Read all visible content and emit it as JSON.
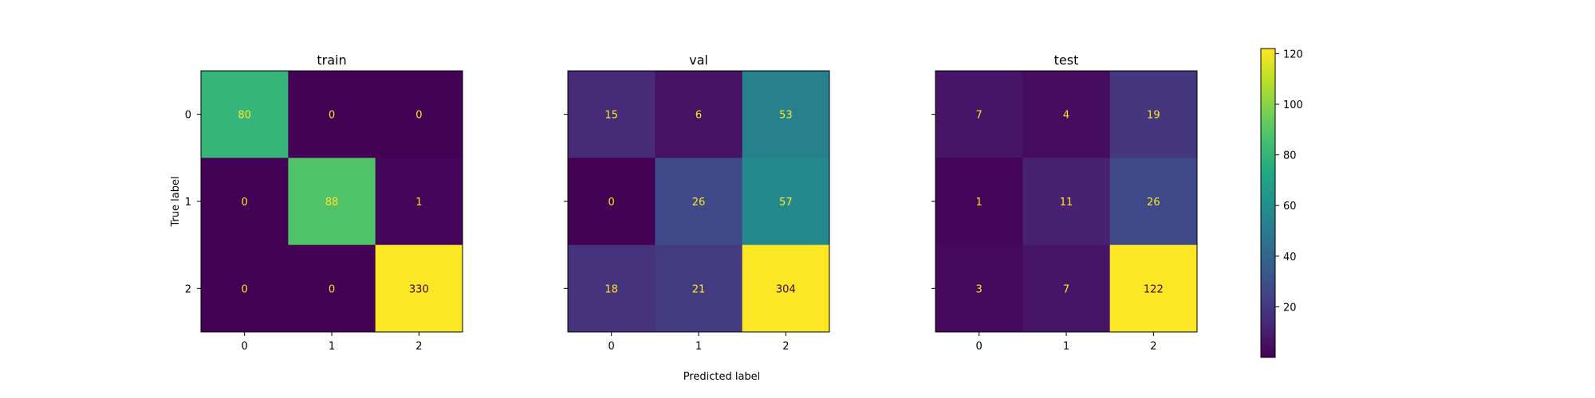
{
  "chart_data": {
    "type": "heatmap",
    "colormap": "viridis",
    "color_range": [
      0,
      122
    ],
    "colorbar_ticks": [
      20,
      40,
      60,
      80,
      100,
      120
    ],
    "xlabel": "Predicted label",
    "ylabel": "True label",
    "categories": [
      "0",
      "1",
      "2"
    ],
    "panels": [
      {
        "title": "train",
        "matrix": [
          [
            80,
            0,
            0
          ],
          [
            0,
            88,
            1
          ],
          [
            0,
            0,
            330
          ]
        ]
      },
      {
        "title": "val",
        "matrix": [
          [
            15,
            6,
            53
          ],
          [
            0,
            26,
            57
          ],
          [
            18,
            21,
            304
          ]
        ]
      },
      {
        "title": "test",
        "matrix": [
          [
            7,
            4,
            19
          ],
          [
            1,
            11,
            26
          ],
          [
            3,
            7,
            122
          ]
        ]
      }
    ]
  }
}
